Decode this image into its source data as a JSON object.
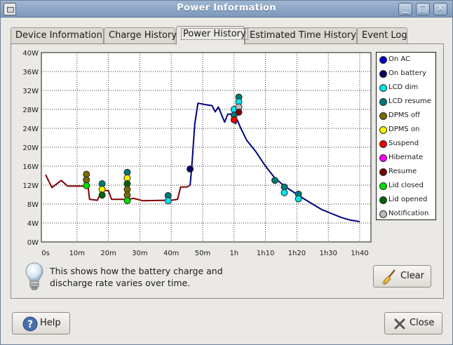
{
  "window": {
    "title": "Power Information"
  },
  "tabs": [
    {
      "label": "Device Information"
    },
    {
      "label": "Charge History"
    },
    {
      "label": "Power History"
    },
    {
      "label": "Estimated Time History"
    },
    {
      "label": "Event Log"
    }
  ],
  "active_tab": "Power History",
  "chart_data": {
    "type": "line",
    "title": "",
    "xlabel": "",
    "ylabel": "",
    "x_ticks": [
      "0s",
      "10m",
      "20m",
      "30m",
      "40m",
      "50m",
      "1h",
      "1h10",
      "1h20",
      "1h30",
      "1h40"
    ],
    "y_ticks": [
      "0W",
      "4W",
      "8W",
      "12W",
      "16W",
      "20W",
      "24W",
      "28W",
      "32W",
      "36W",
      "40W"
    ],
    "xlim_minutes": [
      0,
      100
    ],
    "ylim_watts": [
      0,
      40
    ],
    "grid": true,
    "legend_placement": "right",
    "series": [
      {
        "state": "on-ac",
        "color": "#800000",
        "points_minutes_watts": [
          [
            0,
            14.2
          ],
          [
            2,
            11.5
          ],
          [
            5,
            13.0
          ],
          [
            7,
            11.8
          ],
          [
            12,
            11.8
          ],
          [
            13.5,
            11.8
          ],
          [
            14,
            9.0
          ],
          [
            16.5,
            8.8
          ],
          [
            18,
            11.0
          ],
          [
            20,
            10.8
          ],
          [
            21,
            9.0
          ],
          [
            26,
            9.0
          ],
          [
            28,
            9.2
          ],
          [
            31,
            8.7
          ],
          [
            38,
            8.8
          ],
          [
            39,
            8.7
          ],
          [
            42,
            9.0
          ],
          [
            43,
            11.6
          ],
          [
            45,
            11.6
          ],
          [
            46,
            12.0
          ]
        ]
      },
      {
        "state": "on-battery",
        "color": "#00007c",
        "points_minutes_watts": [
          [
            46,
            12.0
          ],
          [
            46.5,
            15.5
          ],
          [
            47.5,
            25.0
          ],
          [
            48.5,
            29.3
          ],
          [
            51,
            29.0
          ],
          [
            53,
            28.8
          ],
          [
            54,
            27.5
          ],
          [
            55,
            28.5
          ],
          [
            57,
            25.3
          ],
          [
            58,
            27.0
          ],
          [
            59.5,
            27.0
          ],
          [
            60.5,
            25.0
          ],
          [
            61,
            25.8
          ],
          [
            62,
            24.2
          ],
          [
            64,
            21.5
          ],
          [
            67,
            19.0
          ],
          [
            70,
            16.0
          ],
          [
            73,
            13.5
          ],
          [
            76,
            11.8
          ],
          [
            79,
            10.5
          ],
          [
            82,
            9.2
          ],
          [
            85,
            8.0
          ],
          [
            88,
            6.8
          ],
          [
            91,
            6.0
          ],
          [
            94,
            5.2
          ],
          [
            97,
            4.6
          ],
          [
            100,
            4.3
          ]
        ]
      }
    ],
    "events": [
      {
        "minute": 13,
        "watts": 14.3,
        "type": "DPMS off"
      },
      {
        "minute": 13,
        "watts": 13.1,
        "type": "DPMS off"
      },
      {
        "minute": 13,
        "watts": 11.9,
        "type": "Lid closed"
      },
      {
        "minute": 18,
        "watts": 12.3,
        "type": "LCD resume"
      },
      {
        "minute": 18,
        "watts": 11.1,
        "type": "DPMS on"
      },
      {
        "minute": 18,
        "watts": 9.9,
        "type": "Lid opened"
      },
      {
        "minute": 26,
        "watts": 14.7,
        "type": "LCD resume"
      },
      {
        "minute": 26,
        "watts": 13.5,
        "type": "DPMS on"
      },
      {
        "minute": 26,
        "watts": 12.3,
        "type": "Lid opened"
      },
      {
        "minute": 26,
        "watts": 11.1,
        "type": "DPMS off"
      },
      {
        "minute": 26,
        "watts": 9.9,
        "type": "DPMS off"
      },
      {
        "minute": 26,
        "watts": 8.7,
        "type": "Lid closed"
      },
      {
        "minute": 39,
        "watts": 9.8,
        "type": "LCD resume"
      },
      {
        "minute": 39,
        "watts": 8.7,
        "type": "LCD dim"
      },
      {
        "minute": 46,
        "watts": 15.4,
        "type": "On battery"
      },
      {
        "minute": 60,
        "watts": 28.0,
        "type": "LCD dim"
      },
      {
        "minute": 60,
        "watts": 26.8,
        "type": "LCD resume"
      },
      {
        "minute": 60,
        "watts": 25.8,
        "type": "Suspend"
      },
      {
        "minute": 61.5,
        "watts": 30.6,
        "type": "LCD resume"
      },
      {
        "minute": 61.5,
        "watts": 29.6,
        "type": "LCD dim"
      },
      {
        "minute": 61.5,
        "watts": 28.5,
        "type": "Notification"
      },
      {
        "minute": 61.5,
        "watts": 27.4,
        "type": "Resume"
      },
      {
        "minute": 73,
        "watts": 13.0,
        "type": "LCD resume"
      },
      {
        "minute": 76,
        "watts": 11.6,
        "type": "LCD resume"
      },
      {
        "minute": 76,
        "watts": 10.4,
        "type": "LCD dim"
      },
      {
        "minute": 80.5,
        "watts": 10.1,
        "type": "LCD resume"
      },
      {
        "minute": 80.5,
        "watts": 9.1,
        "type": "LCD dim"
      }
    ]
  },
  "legend": [
    {
      "label": "On AC",
      "color": "#0000cc"
    },
    {
      "label": "On battery",
      "color": "#000066"
    },
    {
      "label": "LCD dim",
      "color": "#00e5ee"
    },
    {
      "label": "LCD resume",
      "color": "#007878"
    },
    {
      "label": "DPMS off",
      "color": "#7a6a00"
    },
    {
      "label": "DPMS on",
      "color": "#f5f500"
    },
    {
      "label": "Suspend",
      "color": "#ee0000"
    },
    {
      "label": "Hibernate",
      "color": "#ff00ff"
    },
    {
      "label": "Resume",
      "color": "#7a0000"
    },
    {
      "label": "Lid closed",
      "color": "#00dd00"
    },
    {
      "label": "Lid opened",
      "color": "#006600"
    },
    {
      "label": "Notification",
      "color": "#bbbbbb"
    }
  ],
  "info": {
    "line1": "This shows how the battery charge and",
    "line2": "discharge rate varies over time."
  },
  "buttons": {
    "clear": "Clear",
    "help": "Help",
    "close": "Close"
  },
  "icons": {
    "app": "window-icon",
    "bulb": "lightbulb-icon",
    "clear": "broom-icon",
    "help": "help-icon",
    "close": "close-x-icon"
  }
}
